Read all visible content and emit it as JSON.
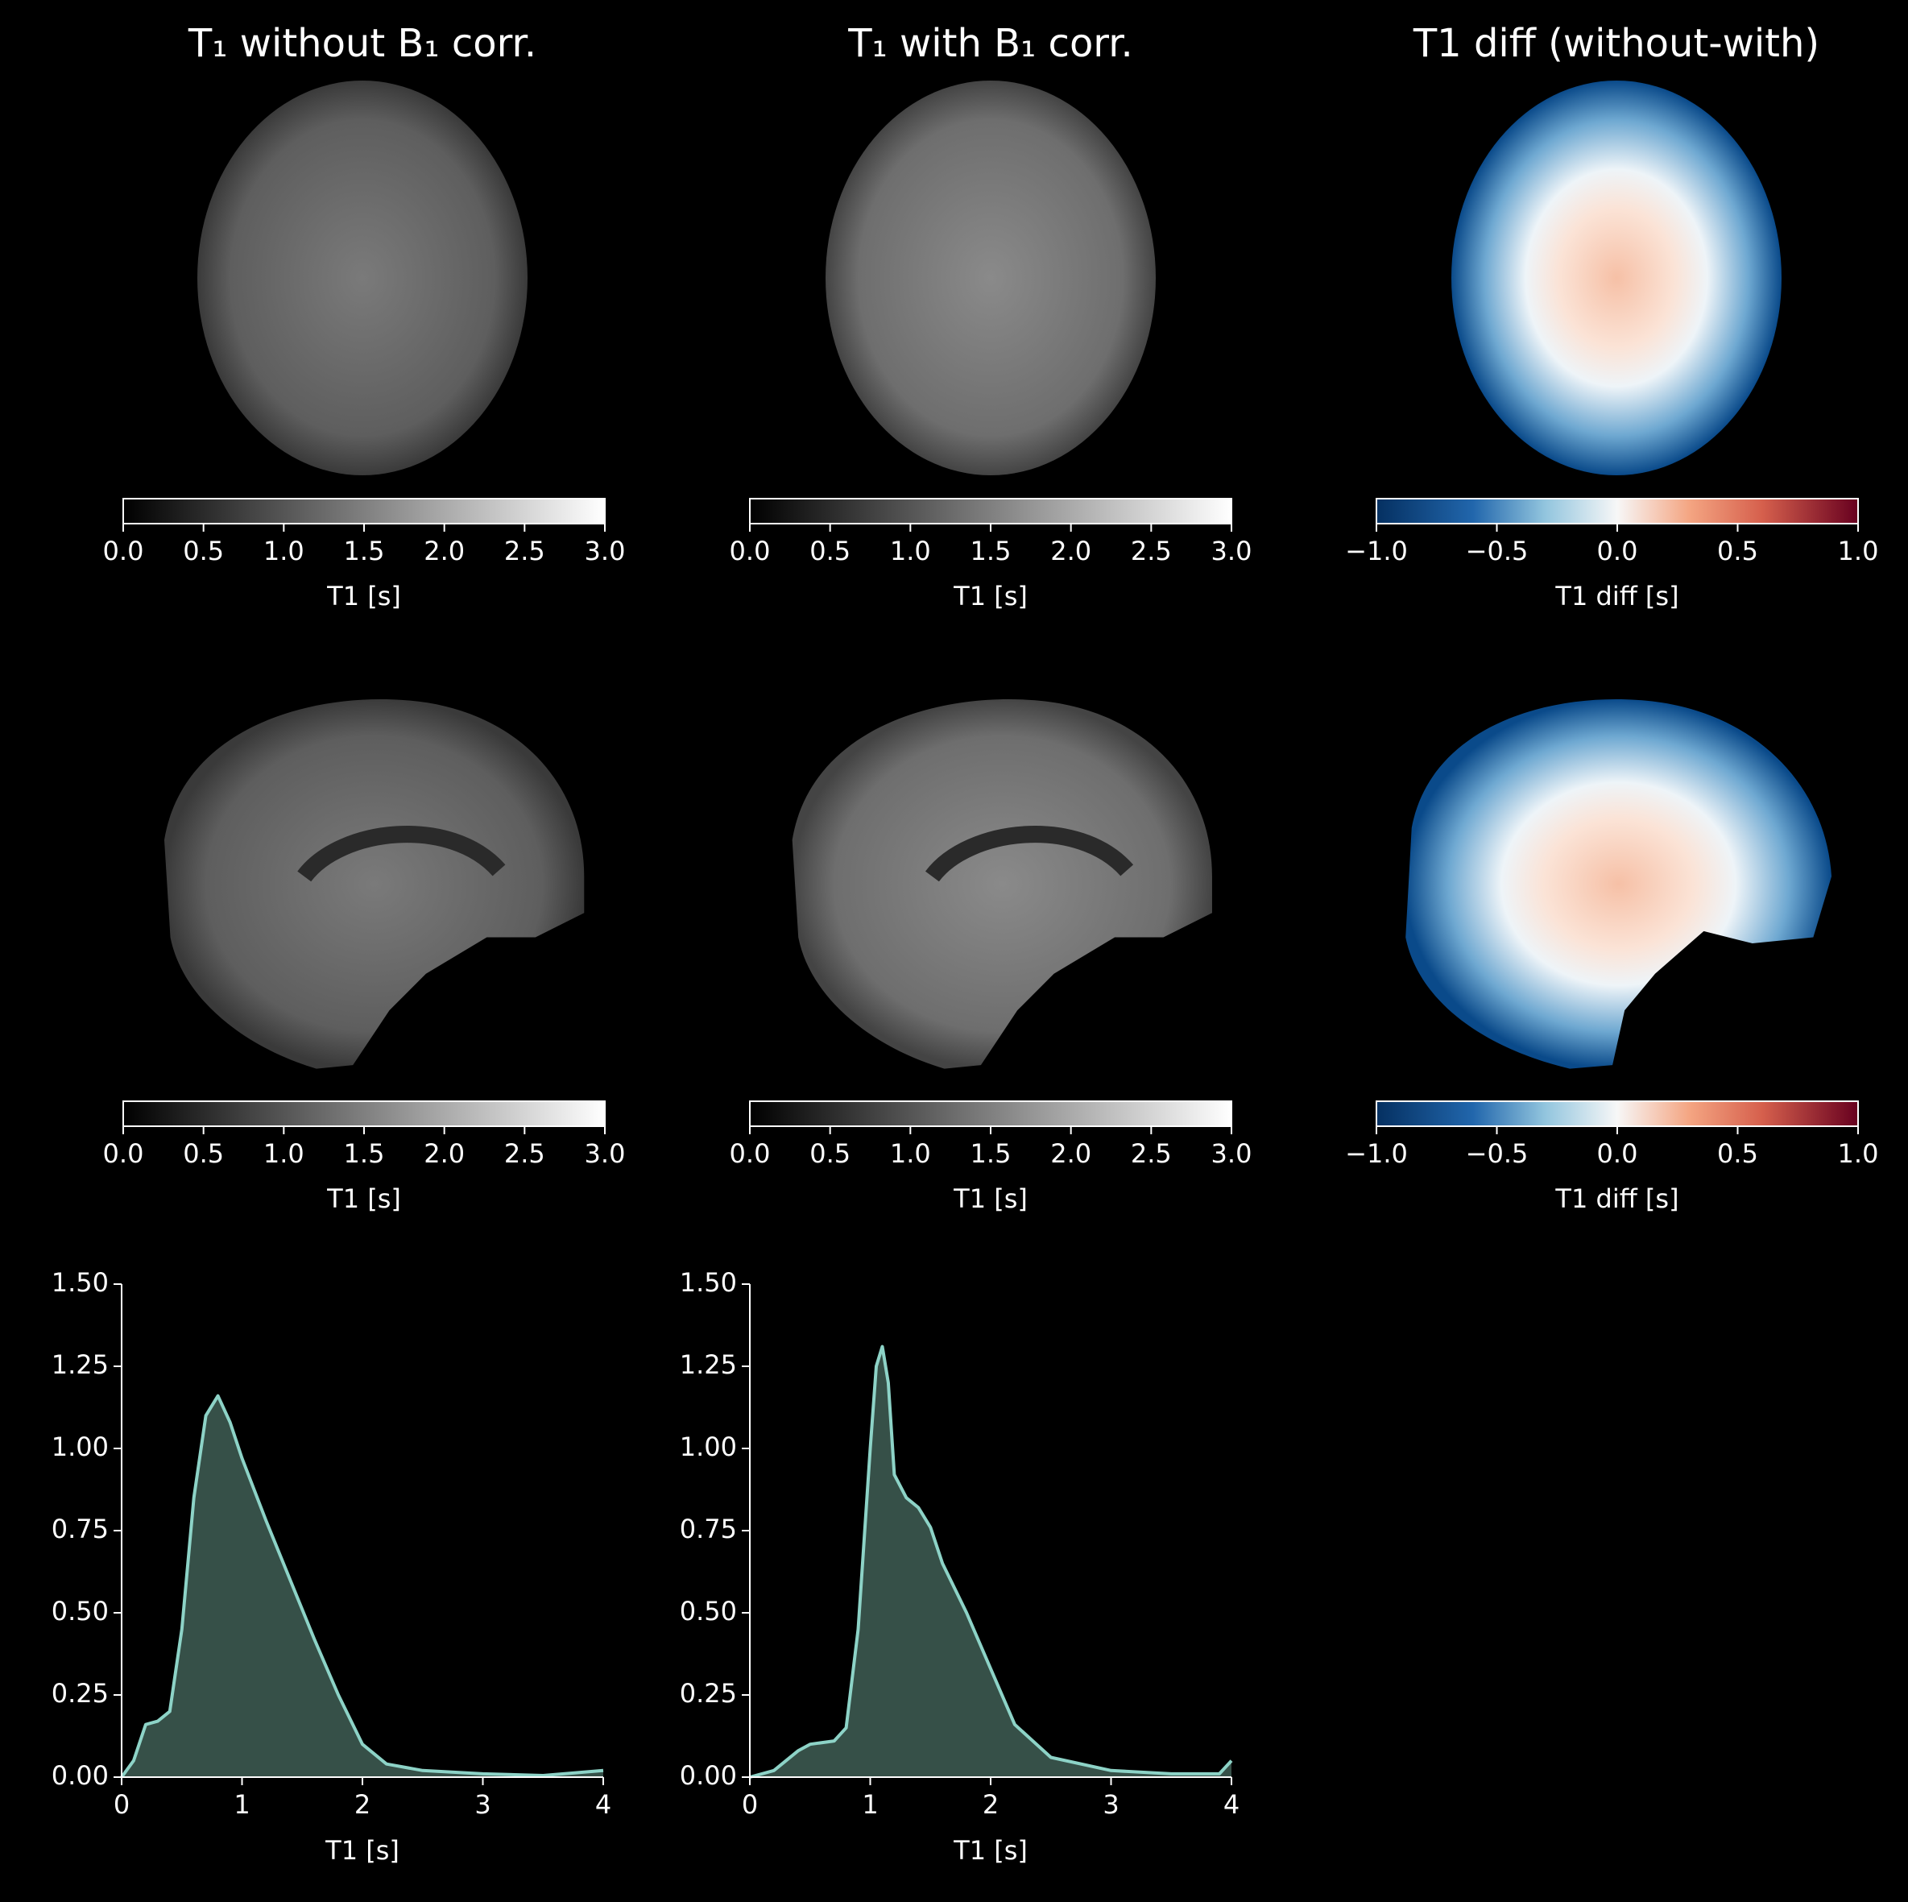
{
  "panels": {
    "titles": [
      "T₁ without B₁ corr.",
      "T₁ with B₁ corr.",
      "T1 diff (without-with)"
    ],
    "colorbars": [
      {
        "label": "T1 [s]",
        "cmap": "gray",
        "lim": [
          0,
          3
        ],
        "ticks": [
          {
            "value": 0,
            "label": "0.0"
          },
          {
            "value": 0.5,
            "label": "0.5"
          },
          {
            "value": 1,
            "label": "1.0"
          },
          {
            "value": 1.5,
            "label": "1.5"
          },
          {
            "value": 2,
            "label": "2.0"
          },
          {
            "value": 2.5,
            "label": "2.5"
          },
          {
            "value": 3,
            "label": "3.0"
          }
        ]
      },
      {
        "label": "T1 [s]",
        "cmap": "gray",
        "lim": [
          0,
          3
        ],
        "ticks": [
          {
            "value": 0,
            "label": "0.0"
          },
          {
            "value": 0.5,
            "label": "0.5"
          },
          {
            "value": 1,
            "label": "1.0"
          },
          {
            "value": 1.5,
            "label": "1.5"
          },
          {
            "value": 2,
            "label": "2.0"
          },
          {
            "value": 2.5,
            "label": "2.5"
          },
          {
            "value": 3,
            "label": "3.0"
          }
        ]
      },
      {
        "label": "T1 diff [s]",
        "cmap": "RdBu_r",
        "lim": [
          -1,
          1
        ],
        "ticks": [
          {
            "value": -1,
            "label": "−1.0"
          },
          {
            "value": -0.5,
            "label": "−0.5"
          },
          {
            "value": 0,
            "label": "0.0"
          },
          {
            "value": 0.5,
            "label": "0.5"
          },
          {
            "value": 1,
            "label": "1.0"
          }
        ]
      },
      {
        "label": "T1 [s]",
        "cmap": "gray",
        "lim": [
          0,
          3
        ],
        "ticks": [
          {
            "value": 0,
            "label": "0.0"
          },
          {
            "value": 0.5,
            "label": "0.5"
          },
          {
            "value": 1,
            "label": "1.0"
          },
          {
            "value": 1.5,
            "label": "1.5"
          },
          {
            "value": 2,
            "label": "2.0"
          },
          {
            "value": 2.5,
            "label": "2.5"
          },
          {
            "value": 3,
            "label": "3.0"
          }
        ]
      },
      {
        "label": "T1 [s]",
        "cmap": "gray",
        "lim": [
          0,
          3
        ],
        "ticks": [
          {
            "value": 0,
            "label": "0.0"
          },
          {
            "value": 0.5,
            "label": "0.5"
          },
          {
            "value": 1,
            "label": "1.0"
          },
          {
            "value": 1.5,
            "label": "1.5"
          },
          {
            "value": 2,
            "label": "2.0"
          },
          {
            "value": 2.5,
            "label": "2.5"
          },
          {
            "value": 3,
            "label": "3.0"
          }
        ]
      },
      {
        "label": "T1 diff [s]",
        "cmap": "RdBu_r",
        "lim": [
          -1,
          1
        ],
        "ticks": [
          {
            "value": -1,
            "label": "−1.0"
          },
          {
            "value": -0.5,
            "label": "−0.5"
          },
          {
            "value": 0,
            "label": "0.0"
          },
          {
            "value": 0.5,
            "label": "0.5"
          },
          {
            "value": 1,
            "label": "1.0"
          }
        ]
      }
    ]
  },
  "chart_data": [
    {
      "type": "area",
      "xlabel": "T1 [s]",
      "color": "#8dd3c7",
      "fill": "#365048",
      "x": [
        0,
        0.1,
        0.2,
        0.3,
        0.4,
        0.5,
        0.6,
        0.7,
        0.8,
        0.9,
        1.0,
        1.2,
        1.4,
        1.6,
        1.8,
        2.0,
        2.2,
        2.5,
        3.0,
        3.5,
        4.0
      ],
      "values": [
        0,
        0.05,
        0.16,
        0.17,
        0.2,
        0.45,
        0.85,
        1.1,
        1.16,
        1.08,
        0.97,
        0.78,
        0.6,
        0.42,
        0.25,
        0.1,
        0.04,
        0.02,
        0.01,
        0.005,
        0.02
      ],
      "xlim": [
        0,
        4
      ],
      "ylim": [
        0,
        1.5
      ],
      "xticks": [
        0,
        1,
        2,
        3,
        4
      ],
      "yticks": [
        {
          "value": 0,
          "label": "0.00"
        },
        {
          "value": 0.25,
          "label": "0.25"
        },
        {
          "value": 0.5,
          "label": "0.50"
        },
        {
          "value": 0.75,
          "label": "0.75"
        },
        {
          "value": 1,
          "label": "1.00"
        },
        {
          "value": 1.25,
          "label": "1.25"
        },
        {
          "value": 1.5,
          "label": "1.50"
        }
      ]
    },
    {
      "type": "area",
      "xlabel": "T1 [s]",
      "color": "#8dd3c7",
      "fill": "#365048",
      "x": [
        0,
        0.2,
        0.4,
        0.5,
        0.7,
        0.8,
        0.9,
        1.0,
        1.05,
        1.1,
        1.15,
        1.2,
        1.3,
        1.4,
        1.5,
        1.6,
        1.8,
        2.0,
        2.2,
        2.5,
        3.0,
        3.5,
        3.9,
        4.0
      ],
      "values": [
        0,
        0.02,
        0.08,
        0.1,
        0.11,
        0.15,
        0.45,
        1.0,
        1.25,
        1.31,
        1.2,
        0.92,
        0.85,
        0.82,
        0.76,
        0.65,
        0.5,
        0.33,
        0.16,
        0.06,
        0.02,
        0.01,
        0.01,
        0.05
      ],
      "xlim": [
        0,
        4
      ],
      "ylim": [
        0,
        1.5
      ],
      "xticks": [
        0,
        1,
        2,
        3,
        4
      ],
      "yticks": [
        {
          "value": 0,
          "label": "0.00"
        },
        {
          "value": 0.25,
          "label": "0.25"
        },
        {
          "value": 0.5,
          "label": "0.50"
        },
        {
          "value": 0.75,
          "label": "0.75"
        },
        {
          "value": 1,
          "label": "1.00"
        },
        {
          "value": 1.25,
          "label": "1.25"
        },
        {
          "value": 1.5,
          "label": "1.50"
        }
      ]
    }
  ]
}
